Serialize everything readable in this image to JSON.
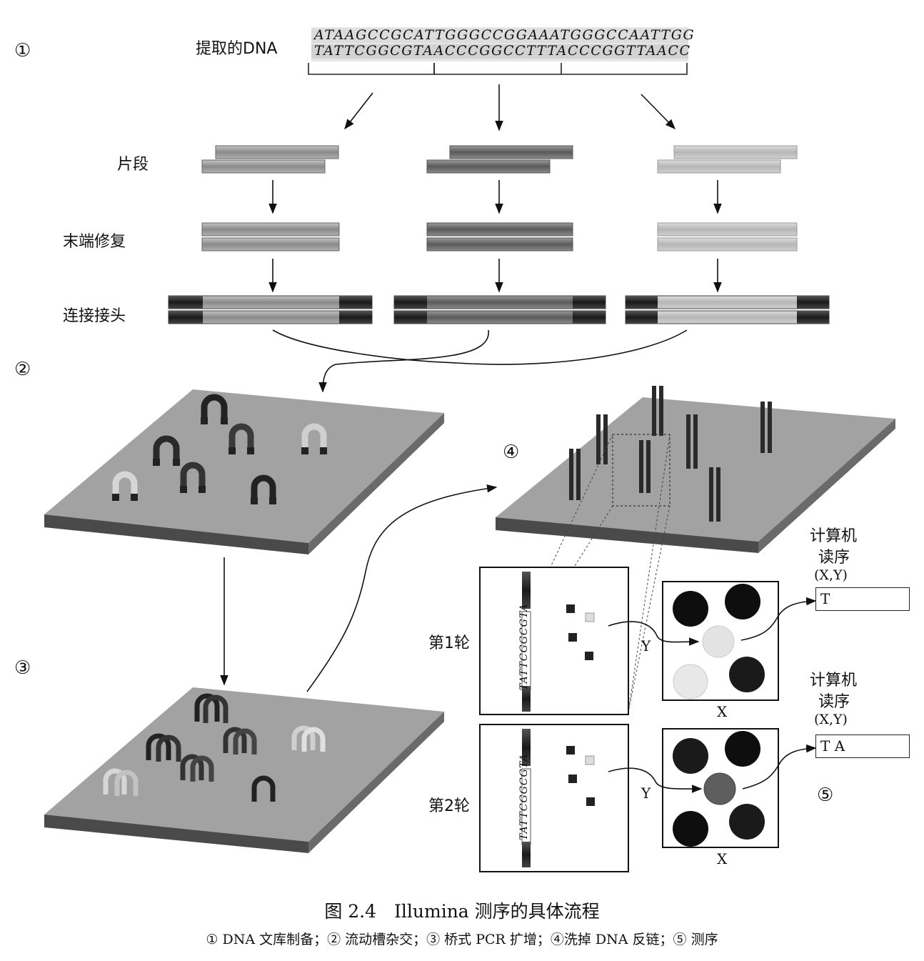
{
  "steps": {
    "s1": "①",
    "s2": "②",
    "s3": "③",
    "s4": "④",
    "s5": "⑤"
  },
  "dna": {
    "label": "提取的DNA",
    "strand_top": "ATAAGCCGCATTGGGCCGGAAATGGGCCAATTGG",
    "strand_bottom": "TATTCGGCGTAACCCGGCCTTTACCCGGTTAACC"
  },
  "rows": {
    "fragment": "片段",
    "end_repair": "末端修复",
    "adapter": "连接接头"
  },
  "rounds": {
    "r1": "第1轮",
    "r2": "第2轮"
  },
  "readout": {
    "title_line1": "计算机",
    "title_line2": "读序",
    "coord": "(X,Y)",
    "result1": "T",
    "result2": "T A"
  },
  "axes": {
    "x": "X",
    "y": "Y"
  },
  "strip_seq": "TATTCGGCGTA",
  "caption": {
    "title": "图 2.4　Illumina 测序的具体流程",
    "subtitle": "① DNA 文库制备；② 流动槽杂交；③ 桥式 PCR 扩增；④洗掉 DNA 反链；⑤ 测序"
  },
  "colors": {
    "plate": "#a2a2a2",
    "plate_edge": "#505050",
    "strand": "#9a9a9a",
    "adapter": "#2e2e2e"
  }
}
